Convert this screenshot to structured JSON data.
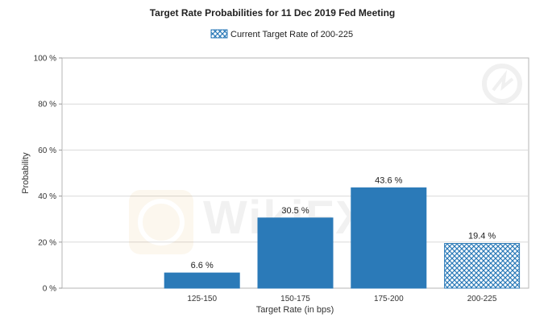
{
  "chart_data": {
    "type": "bar",
    "title": "Target Rate Probabilities for 11 Dec 2019 Fed Meeting",
    "legend": {
      "label": "Current Target Rate of 200-225",
      "placement": "top-center"
    },
    "xlabel": "Target Rate (in bps)",
    "ylabel": "Probability",
    "ylim": [
      0,
      100
    ],
    "yticks": [
      0,
      20,
      40,
      60,
      80,
      100
    ],
    "ytick_labels": [
      "0 %",
      "20 %",
      "40 %",
      "60 %",
      "80 %",
      "100 %"
    ],
    "categories": [
      "125-150",
      "150-175",
      "175-200",
      "200-225"
    ],
    "values": [
      6.6,
      30.5,
      43.6,
      19.4
    ],
    "value_labels": [
      "6.6 %",
      "30.5 %",
      "43.6 %",
      "19.4 %"
    ],
    "current_category": "200-225",
    "bar_color": "#2b7ab8",
    "grid": true
  },
  "watermark": {
    "text": "WikiFX"
  }
}
